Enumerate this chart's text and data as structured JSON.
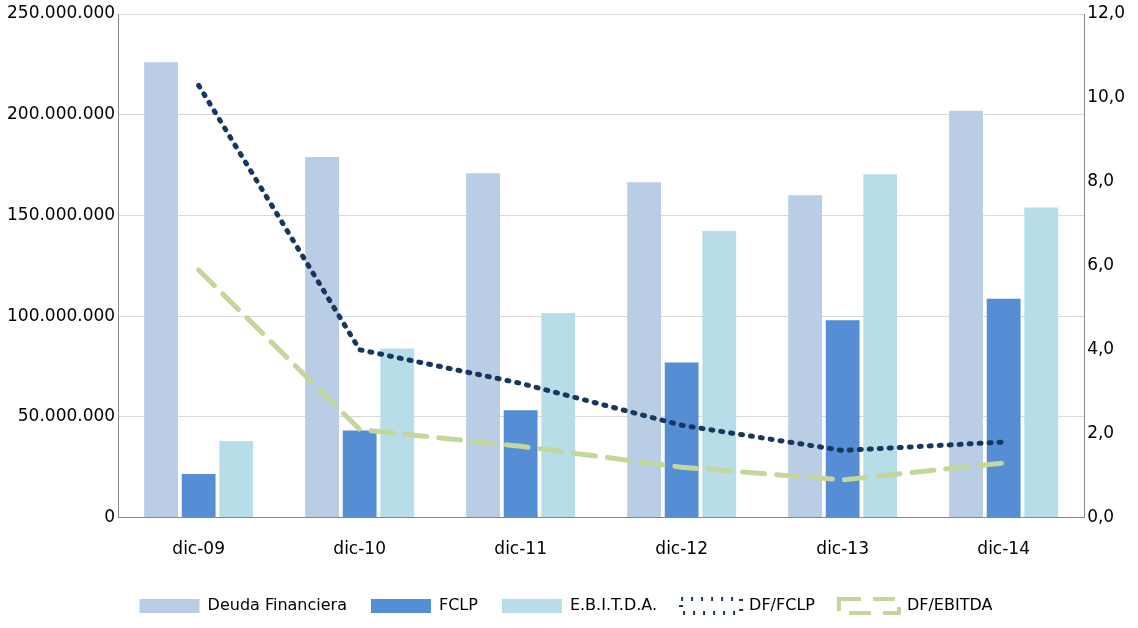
{
  "chart_data": {
    "type": "bar",
    "categories": [
      "dic-09",
      "dic-10",
      "dic-11",
      "dic-12",
      "dic-13",
      "dic-14"
    ],
    "series": [
      {
        "name": "Deuda Financiera",
        "color": "#b9cde5",
        "values": [
          226000000,
          179000000,
          171000000,
          166500000,
          160000000,
          202000000
        ]
      },
      {
        "name": "FCLP",
        "color": "#558ed5",
        "values": [
          21600000,
          43300000,
          53300000,
          77000000,
          98000000,
          108700000
        ]
      },
      {
        "name": "E.B.I.T.D.A.",
        "color": "#b7dee8",
        "values": [
          38000000,
          84000000,
          101600000,
          142300000,
          170500000,
          154000000
        ]
      },
      {
        "name": "DF/FCLP",
        "type": "line",
        "axis": "y2",
        "color": "#17375e",
        "line_style": "dotted",
        "values": [
          10.3,
          4.0,
          3.2,
          2.2,
          1.6,
          1.8
        ]
      },
      {
        "name": "DF/EBITDA",
        "type": "line",
        "axis": "y2",
        "color": "#c3d69b",
        "line_style": "dashed",
        "values": [
          5.9,
          2.1,
          1.7,
          1.2,
          0.9,
          1.3
        ]
      }
    ],
    "ylim": [
      0,
      250000000
    ],
    "yticks": [
      {
        "value": 0,
        "label": "0"
      },
      {
        "value": 50000000,
        "label": "50.000.000"
      },
      {
        "value": 100000000,
        "label": "100.000.000"
      },
      {
        "value": 150000000,
        "label": "150.000.000"
      },
      {
        "value": 200000000,
        "label": "200.000.000"
      },
      {
        "value": 250000000,
        "label": "250.000.000"
      }
    ],
    "y2lim": [
      0,
      12
    ],
    "y2ticks": [
      {
        "value": 0,
        "label": "0,0"
      },
      {
        "value": 2,
        "label": "2,0"
      },
      {
        "value": 4,
        "label": "4,0"
      },
      {
        "value": 6,
        "label": "6,0"
      },
      {
        "value": 8,
        "label": "8,0"
      },
      {
        "value": 10,
        "label": "10,0"
      },
      {
        "value": 12,
        "label": "12,0"
      }
    ],
    "grid": "y",
    "legend": "bottom",
    "marker": "none"
  }
}
